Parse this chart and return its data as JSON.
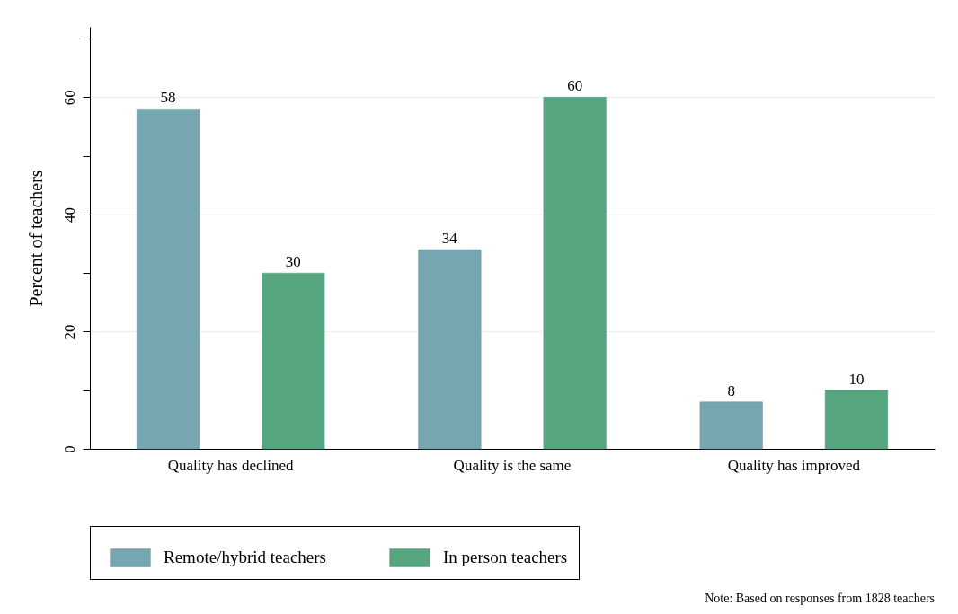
{
  "chart_data": {
    "type": "bar",
    "ylabel": "Percent of teachers",
    "categories": [
      "Quality has declined",
      "Quality is the same",
      "Quality has improved"
    ],
    "series": [
      {
        "name": "Remote/hybrid teachers",
        "color": "#76a6b0",
        "values": [
          58,
          34,
          8
        ]
      },
      {
        "name": "In person teachers",
        "color": "#55a57f",
        "values": [
          30,
          60,
          10
        ]
      }
    ],
    "ylim": [
      0,
      72
    ],
    "yticks": [
      0,
      {
        "value": 10,
        "label": null
      },
      20,
      {
        "value": 30,
        "label": null
      },
      40,
      {
        "value": 50,
        "label": null
      },
      60,
      {
        "value": 70,
        "label": null
      }
    ],
    "grid": "y",
    "legend": "bottom",
    "data_labels": true,
    "annotations": [
      "Note: Based on responses from 1828 teachers"
    ]
  }
}
